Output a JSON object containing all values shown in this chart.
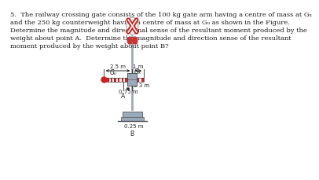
{
  "bg_color": "#ffffff",
  "text_color": "#1a1a1a",
  "question_text_lines": [
    "5.  The railway crossing gate consists of the 100 kg gate arm having a centre of mass at Gₓ",
    "and the 250 kg counterweight having a centre of mass at Gᵤ as shown in the Figure.",
    "Determine the magnitude and directional sense of the resultant moment produced by the",
    "weight about point A.  Determine the magnitude and direction sense of the resultant",
    "moment produced by the weight about point B?"
  ],
  "dim_25": "2.5 m",
  "dim_075": "0.75 m",
  "dim_03": "0.3 m",
  "dim_1": "1 m",
  "dim_025": "0.25 m",
  "label_Ga": "Gₓ",
  "label_Gw": "Gᵤ",
  "label_A": "A",
  "label_B": "B",
  "red_color": "#cc2222",
  "white_color": "#ffffff",
  "post_color": "#9aaabb",
  "dim_color": "#222222",
  "sign_bg": "#f0f0f0"
}
